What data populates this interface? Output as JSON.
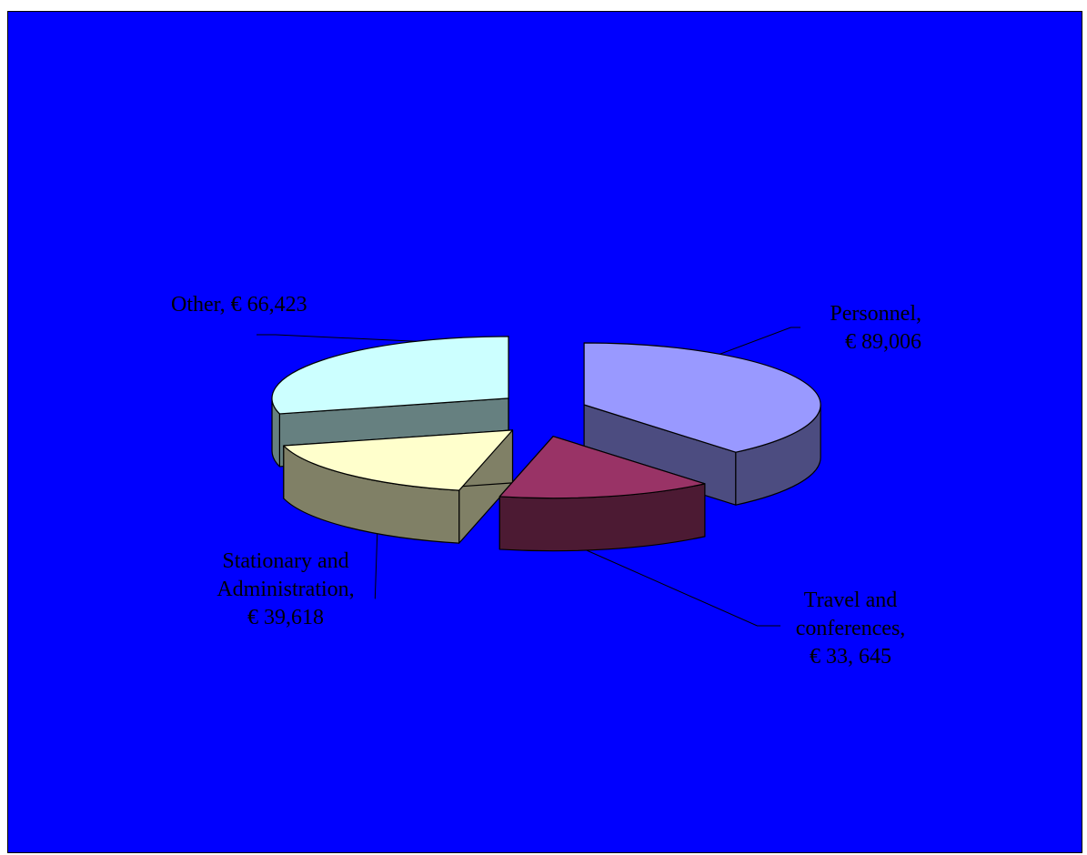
{
  "chart_data": {
    "type": "pie",
    "style": "3d-exploded",
    "title": "",
    "background_color": "#0000ff",
    "slices": [
      {
        "category": "Personnel",
        "value": 89006,
        "label_lines": [
          "Personnel,",
          "€ 89,006"
        ],
        "top_color": "#9999ff",
        "side_color": "#4c4c80"
      },
      {
        "category": "Travel and conferences",
        "value": 33645,
        "label_lines": [
          "Travel and",
          "conferences,",
          "€ 33, 645"
        ],
        "top_color": "#993366",
        "side_color": "#4c1a33"
      },
      {
        "category": "Stationary and Administration",
        "value": 39618,
        "label_lines": [
          "Stationary and",
          "Administration,",
          "€ 39,618"
        ],
        "top_color": "#ffffcc",
        "side_color": "#808066"
      },
      {
        "category": "Other",
        "value": 66423,
        "label_lines": [
          "Other, € 66,423"
        ],
        "top_color": "#ccffff",
        "side_color": "#668080"
      }
    ]
  }
}
